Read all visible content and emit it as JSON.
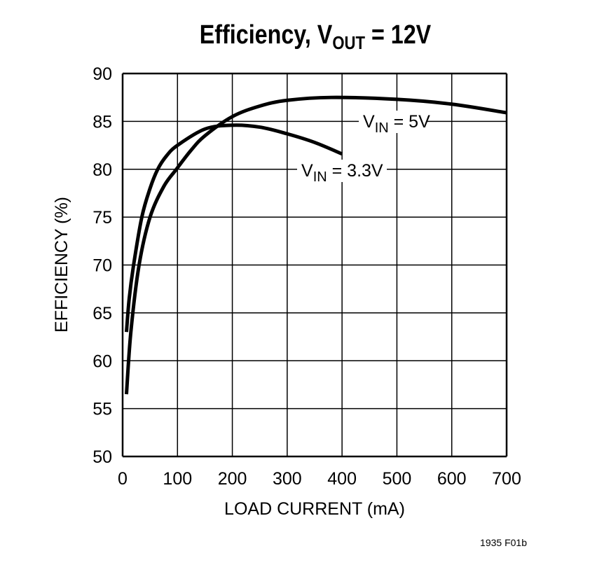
{
  "chart_data": {
    "type": "line",
    "title": {
      "main": "Efficiency, V",
      "sub": "OUT",
      "rest": " = 12V"
    },
    "xlabel": "LOAD CURRENT (mA)",
    "ylabel": "EFFICIENCY (%)",
    "xlim": [
      0,
      700
    ],
    "ylim": [
      50,
      90
    ],
    "xticks": [
      "0",
      "100",
      "200",
      "300",
      "400",
      "500",
      "600",
      "700"
    ],
    "yticks": [
      "50",
      "55",
      "60",
      "65",
      "70",
      "75",
      "80",
      "85",
      "90"
    ],
    "grid": true,
    "line_color": "#000000",
    "series": [
      {
        "name": "VIN = 5V",
        "label": {
          "main": "V",
          "sub": "IN",
          "rest": " = 5V"
        },
        "x": [
          7,
          15,
          30,
          50,
          75,
          98,
          125,
          150,
          200,
          250,
          300,
          380,
          500,
          600,
          700
        ],
        "y": [
          56.5,
          63,
          70,
          75,
          78.2,
          80,
          82,
          83.5,
          85.5,
          86.6,
          87.2,
          87.5,
          87.3,
          86.8,
          85.9
        ]
      },
      {
        "name": "VIN = 3.3V",
        "label": {
          "main": "V",
          "sub": "IN",
          "rest": " = 3.3V"
        },
        "x": [
          7,
          12,
          20,
          35,
          50,
          64,
          80,
          100,
          150,
          200,
          250,
          300,
          350,
          400
        ],
        "y": [
          63,
          66.5,
          70,
          75,
          78,
          80,
          81.4,
          82.5,
          84.2,
          84.6,
          84.4,
          83.7,
          82.8,
          81.6
        ]
      }
    ],
    "footnote": "1935 F01b"
  }
}
